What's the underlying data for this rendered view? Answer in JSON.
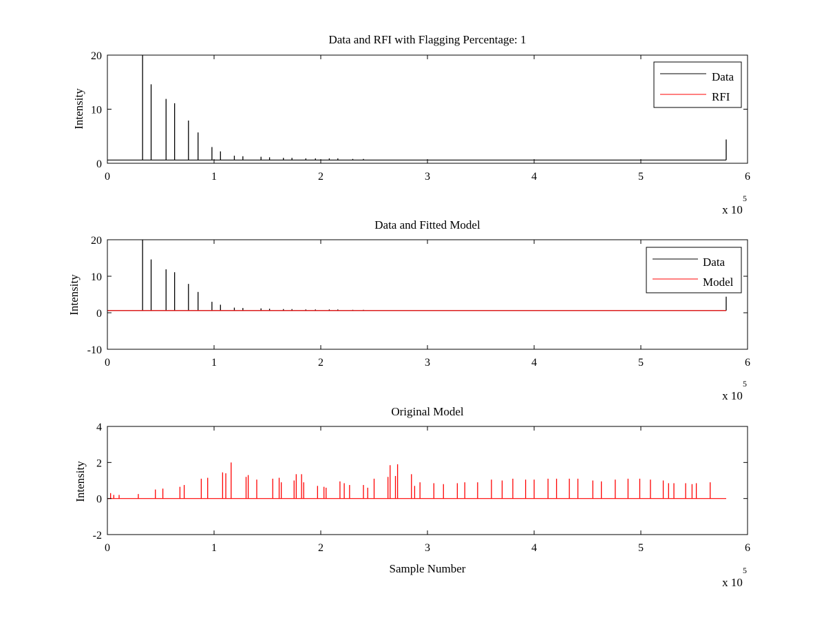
{
  "colors": {
    "data": "#000000",
    "rfi": "#ff0000",
    "model": "#ff0000",
    "axes": "#000000",
    "background": "#ffffff"
  },
  "chart_data": [
    {
      "type": "line",
      "title": "Data and RFI with Flagging Percentage: 1",
      "xlabel": "",
      "ylabel": "Intensity",
      "xlim": [
        0,
        600000
      ],
      "ylim": [
        0,
        20
      ],
      "x_exponent_label": "x 10",
      "x_exponent_power": "5",
      "xticks": [
        0,
        1,
        2,
        3,
        4,
        5,
        6
      ],
      "yticks": [
        0,
        10,
        20
      ],
      "legend": {
        "placement": "top-right",
        "entries": [
          "Data",
          "RFI"
        ]
      },
      "grid": false,
      "baseline": 0.6,
      "series": [
        {
          "name": "Data",
          "color": "#000000",
          "peaks": [
            [
              33000,
              20
            ],
            [
              41000,
              14.6
            ],
            [
              55000,
              11.9
            ],
            [
              63000,
              11.1
            ],
            [
              76000,
              7.9
            ],
            [
              85000,
              5.7
            ],
            [
              98000,
              3.0
            ],
            [
              106000,
              2.2
            ],
            [
              119000,
              1.4
            ],
            [
              127000,
              1.3
            ],
            [
              144000,
              1.2
            ],
            [
              152000,
              1.1
            ],
            [
              165000,
              1.0
            ],
            [
              173000,
              1.0
            ],
            [
              186000,
              0.9
            ],
            [
              195000,
              0.9
            ],
            [
              208000,
              0.9
            ],
            [
              216000,
              0.9
            ],
            [
              230000,
              0.8
            ],
            [
              240000,
              0.8
            ],
            [
              580000,
              4.4
            ]
          ]
        },
        {
          "name": "RFI",
          "color": "#ff0000",
          "peaks": []
        }
      ]
    },
    {
      "type": "line",
      "title": "Data and Fitted Model",
      "xlabel": "",
      "ylabel": "Intensity",
      "xlim": [
        0,
        600000
      ],
      "ylim": [
        -10,
        20
      ],
      "x_exponent_label": "x 10",
      "x_exponent_power": "5",
      "xticks": [
        0,
        1,
        2,
        3,
        4,
        5,
        6
      ],
      "yticks": [
        -10,
        0,
        10,
        20
      ],
      "legend": {
        "placement": "top-right",
        "entries": [
          "Data",
          "Model"
        ]
      },
      "grid": false,
      "baseline": 0.6,
      "series": [
        {
          "name": "Data",
          "color": "#000000",
          "peaks": [
            [
              33000,
              20
            ],
            [
              41000,
              14.6
            ],
            [
              55000,
              11.9
            ],
            [
              63000,
              11.1
            ],
            [
              76000,
              7.9
            ],
            [
              85000,
              5.7
            ],
            [
              98000,
              3.0
            ],
            [
              106000,
              2.2
            ],
            [
              119000,
              1.4
            ],
            [
              127000,
              1.3
            ],
            [
              144000,
              1.2
            ],
            [
              152000,
              1.1
            ],
            [
              165000,
              1.0
            ],
            [
              173000,
              1.0
            ],
            [
              186000,
              0.9
            ],
            [
              195000,
              0.9
            ],
            [
              208000,
              0.9
            ],
            [
              216000,
              0.9
            ],
            [
              230000,
              0.8
            ],
            [
              240000,
              0.8
            ],
            [
              580000,
              4.4
            ]
          ]
        },
        {
          "name": "Model",
          "color": "#ff0000",
          "value": 0.6
        }
      ]
    },
    {
      "type": "line",
      "title": "Original Model",
      "xlabel": "Sample Number",
      "ylabel": "Intensity",
      "xlim": [
        0,
        600000
      ],
      "ylim": [
        -2,
        4
      ],
      "x_exponent_label": "x 10",
      "x_exponent_power": "5",
      "xticks": [
        0,
        1,
        2,
        3,
        4,
        5,
        6
      ],
      "yticks": [
        -2,
        0,
        2,
        4
      ],
      "legend": null,
      "grid": false,
      "baseline": 0,
      "series": [
        {
          "name": "",
          "color": "#ff0000",
          "peaks": [
            [
              3000,
              0.3
            ],
            [
              6000,
              0.2
            ],
            [
              11000,
              0.2
            ],
            [
              29000,
              0.25
            ],
            [
              45000,
              0.5
            ],
            [
              52000,
              0.55
            ],
            [
              68000,
              0.65
            ],
            [
              72000,
              0.75
            ],
            [
              88000,
              1.1
            ],
            [
              94000,
              1.15
            ],
            [
              108000,
              1.45
            ],
            [
              111000,
              1.4
            ],
            [
              116000,
              2.0
            ],
            [
              130000,
              1.2
            ],
            [
              132000,
              1.3
            ],
            [
              140000,
              1.05
            ],
            [
              155000,
              1.1
            ],
            [
              161000,
              1.15
            ],
            [
              163000,
              0.9
            ],
            [
              175000,
              1.0
            ],
            [
              177000,
              1.35
            ],
            [
              182000,
              1.35
            ],
            [
              184000,
              0.9
            ],
            [
              197000,
              0.7
            ],
            [
              203000,
              0.65
            ],
            [
              205000,
              0.6
            ],
            [
              218000,
              0.95
            ],
            [
              222000,
              0.85
            ],
            [
              227000,
              0.75
            ],
            [
              240000,
              0.75
            ],
            [
              244000,
              0.6
            ],
            [
              250000,
              1.1
            ],
            [
              263000,
              1.2
            ],
            [
              265000,
              1.85
            ],
            [
              270000,
              1.25
            ],
            [
              272000,
              1.9
            ],
            [
              285000,
              1.35
            ],
            [
              288000,
              0.7
            ],
            [
              293000,
              0.9
            ],
            [
              306000,
              0.85
            ],
            [
              315000,
              0.8
            ],
            [
              328000,
              0.85
            ],
            [
              335000,
              0.9
            ],
            [
              347000,
              0.9
            ],
            [
              360000,
              1.05
            ],
            [
              370000,
              1.0
            ],
            [
              380000,
              1.1
            ],
            [
              392000,
              1.05
            ],
            [
              400000,
              1.05
            ],
            [
              413000,
              1.1
            ],
            [
              421000,
              1.1
            ],
            [
              433000,
              1.1
            ],
            [
              441000,
              1.1
            ],
            [
              455000,
              1.0
            ],
            [
              463000,
              0.95
            ],
            [
              476000,
              1.05
            ],
            [
              488000,
              1.1
            ],
            [
              499000,
              1.1
            ],
            [
              509000,
              1.05
            ],
            [
              521000,
              1.0
            ],
            [
              526000,
              0.85
            ],
            [
              531000,
              0.85
            ],
            [
              542000,
              0.85
            ],
            [
              548000,
              0.8
            ],
            [
              552000,
              0.85
            ],
            [
              565000,
              0.9
            ]
          ]
        }
      ]
    }
  ]
}
